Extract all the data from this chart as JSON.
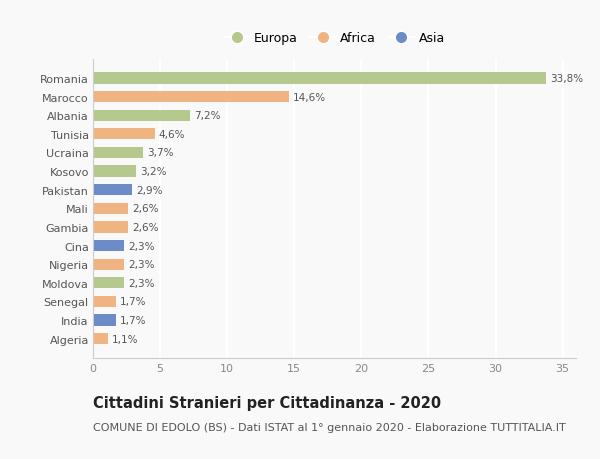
{
  "countries": [
    "Romania",
    "Marocco",
    "Albania",
    "Tunisia",
    "Ucraina",
    "Kosovo",
    "Pakistan",
    "Mali",
    "Gambia",
    "Cina",
    "Nigeria",
    "Moldova",
    "Senegal",
    "India",
    "Algeria"
  ],
  "values": [
    33.8,
    14.6,
    7.2,
    4.6,
    3.7,
    3.2,
    2.9,
    2.6,
    2.6,
    2.3,
    2.3,
    2.3,
    1.7,
    1.7,
    1.1
  ],
  "labels": [
    "33,8%",
    "14,6%",
    "7,2%",
    "4,6%",
    "3,7%",
    "3,2%",
    "2,9%",
    "2,6%",
    "2,6%",
    "2,3%",
    "2,3%",
    "2,3%",
    "1,7%",
    "1,7%",
    "1,1%"
  ],
  "continents": [
    "Europa",
    "Africa",
    "Europa",
    "Africa",
    "Europa",
    "Europa",
    "Asia",
    "Africa",
    "Africa",
    "Asia",
    "Africa",
    "Europa",
    "Africa",
    "Asia",
    "Africa"
  ],
  "colors": {
    "Europa": "#b5c98e",
    "Africa": "#f0b482",
    "Asia": "#6b8cc7"
  },
  "title": "Cittadini Stranieri per Cittadinanza - 2020",
  "subtitle": "COMUNE DI EDOLO (BS) - Dati ISTAT al 1° gennaio 2020 - Elaborazione TUTTITALIA.IT",
  "xlim": [
    0,
    36
  ],
  "xticks": [
    0,
    5,
    10,
    15,
    20,
    25,
    30,
    35
  ],
  "background_color": "#f9f9f9",
  "grid_color": "#ffffff",
  "bar_height": 0.6,
  "label_fontsize": 7.5,
  "ytick_fontsize": 8,
  "xtick_fontsize": 8,
  "title_fontsize": 10.5,
  "subtitle_fontsize": 8,
  "legend_fontsize": 9,
  "legend_marker_size": 9
}
